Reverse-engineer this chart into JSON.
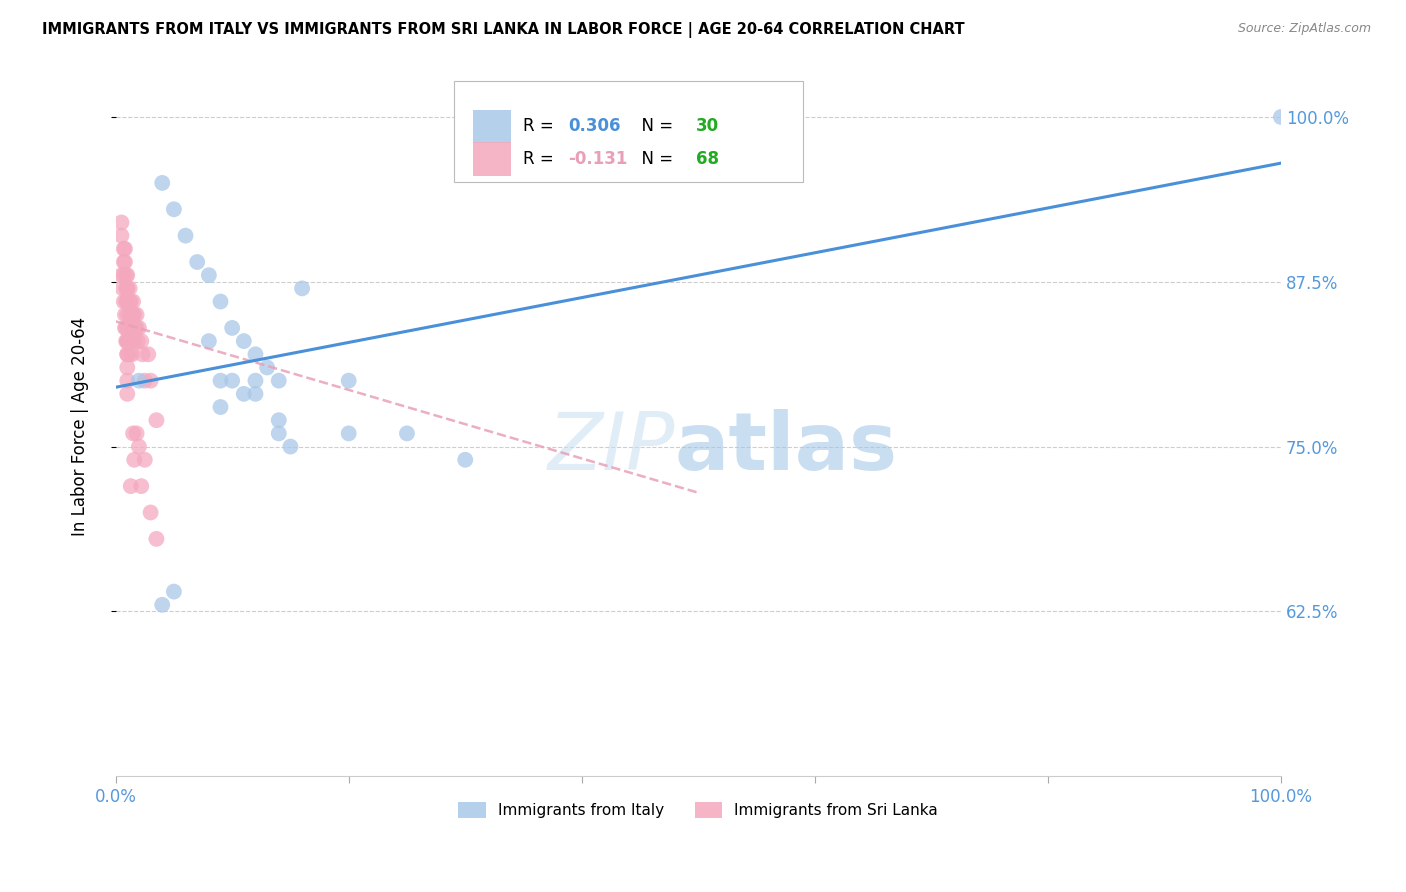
{
  "title": "IMMIGRANTS FROM ITALY VS IMMIGRANTS FROM SRI LANKA IN LABOR FORCE | AGE 20-64 CORRELATION CHART",
  "source": "Source: ZipAtlas.com",
  "ylabel": "In Labor Force | Age 20-64",
  "xlim": [
    0.0,
    1.0
  ],
  "ylim": [
    0.5,
    1.03
  ],
  "x_tick_positions": [
    0.0,
    0.2,
    0.4,
    0.6,
    0.8,
    1.0
  ],
  "x_tick_labels": [
    "0.0%",
    "",
    "",
    "",
    "",
    "100.0%"
  ],
  "y_tick_positions": [
    0.625,
    0.75,
    0.875,
    1.0
  ],
  "y_tick_labels": [
    "62.5%",
    "75.0%",
    "87.5%",
    "100.0%"
  ],
  "italy_R": 0.306,
  "italy_N": 30,
  "srilanka_R": -0.131,
  "srilanka_N": 68,
  "italy_color": "#a8c8e8",
  "srilanka_color": "#f4a8be",
  "italy_line_color": "#4a90d9",
  "srilanka_line_color": "#e8a0b8",
  "italy_line_x0": 0.0,
  "italy_line_y0": 0.795,
  "italy_line_x1": 1.0,
  "italy_line_y1": 0.965,
  "srilanka_line_x0": 0.0,
  "srilanka_line_y0": 0.845,
  "srilanka_line_x1": 0.5,
  "srilanka_line_y1": 0.715,
  "italy_scatter_x": [
    0.02,
    0.04,
    0.05,
    0.06,
    0.07,
    0.08,
    0.09,
    0.1,
    0.11,
    0.12,
    0.13,
    0.14,
    0.08,
    0.09,
    0.1,
    0.11,
    0.12,
    0.14,
    0.16,
    0.2,
    0.25,
    0.3,
    0.05,
    0.09,
    0.12,
    0.14,
    0.15,
    0.2,
    0.04,
    1.0
  ],
  "italy_scatter_y": [
    0.8,
    0.95,
    0.93,
    0.91,
    0.89,
    0.88,
    0.86,
    0.84,
    0.83,
    0.82,
    0.81,
    0.8,
    0.83,
    0.8,
    0.8,
    0.79,
    0.79,
    0.77,
    0.87,
    0.8,
    0.76,
    0.74,
    0.64,
    0.78,
    0.8,
    0.76,
    0.75,
    0.76,
    0.63,
    1.0
  ],
  "srilanka_scatter_x": [
    0.005,
    0.005,
    0.007,
    0.007,
    0.007,
    0.008,
    0.008,
    0.009,
    0.009,
    0.009,
    0.01,
    0.01,
    0.01,
    0.01,
    0.01,
    0.01,
    0.01,
    0.01,
    0.01,
    0.01,
    0.01,
    0.01,
    0.012,
    0.012,
    0.012,
    0.013,
    0.013,
    0.014,
    0.015,
    0.015,
    0.015,
    0.015,
    0.016,
    0.016,
    0.016,
    0.017,
    0.018,
    0.018,
    0.019,
    0.02,
    0.022,
    0.023,
    0.025,
    0.028,
    0.03,
    0.035,
    0.005,
    0.006,
    0.007,
    0.008,
    0.008,
    0.009,
    0.009,
    0.01,
    0.01,
    0.011,
    0.012,
    0.012,
    0.013,
    0.014,
    0.015,
    0.016,
    0.018,
    0.02,
    0.022,
    0.025,
    0.03,
    0.035
  ],
  "srilanka_scatter_y": [
    0.92,
    0.91,
    0.9,
    0.89,
    0.88,
    0.9,
    0.89,
    0.88,
    0.87,
    0.86,
    0.87,
    0.86,
    0.85,
    0.84,
    0.83,
    0.82,
    0.81,
    0.8,
    0.79,
    0.88,
    0.87,
    0.86,
    0.87,
    0.86,
    0.85,
    0.86,
    0.85,
    0.85,
    0.86,
    0.85,
    0.84,
    0.83,
    0.85,
    0.84,
    0.83,
    0.84,
    0.85,
    0.84,
    0.83,
    0.84,
    0.83,
    0.82,
    0.8,
    0.82,
    0.8,
    0.77,
    0.88,
    0.87,
    0.86,
    0.85,
    0.84,
    0.84,
    0.83,
    0.83,
    0.82,
    0.83,
    0.83,
    0.82,
    0.72,
    0.82,
    0.76,
    0.74,
    0.76,
    0.75,
    0.72,
    0.74,
    0.7,
    0.68
  ],
  "legend_italy_label": "R = 0.306   N = 30",
  "legend_srilanka_label": "R = -0.131   N = 68",
  "legend_R_italy": "0.306",
  "legend_R_srilanka": "-0.131",
  "legend_N_italy": "30",
  "legend_N_srilanka": "68",
  "R_color": "#4a90d9",
  "N_color": "#22aa22",
  "watermark_zip_color": "#c8dff0",
  "watermark_atlas_color": "#a0c4e8"
}
